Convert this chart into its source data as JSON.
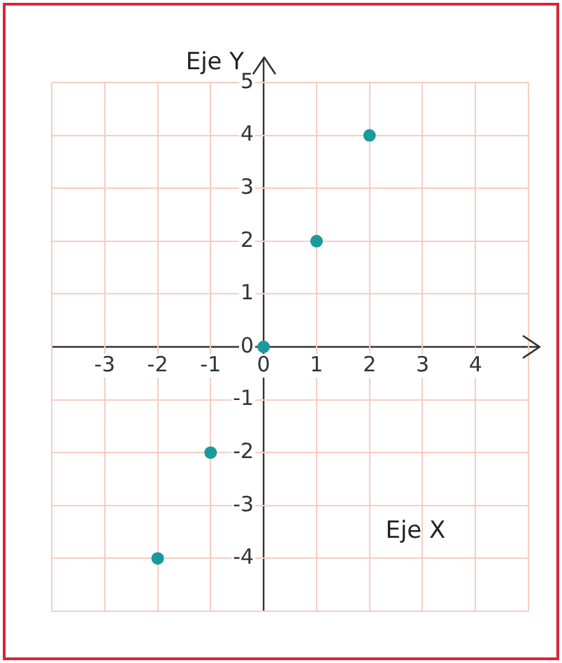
{
  "chart_data": {
    "type": "scatter",
    "xlabel": "Eje X",
    "ylabel": "Eje Y",
    "x": [
      -2,
      -1,
      0,
      1,
      2
    ],
    "series": [
      {
        "color": "#1a9a9c",
        "values": [
          -4,
          -2,
          0,
          2,
          4
        ]
      }
    ],
    "xlim": [
      -4,
      5
    ],
    "ylim": [
      -5,
      5
    ],
    "xticks": [
      {
        "value": -4,
        "label": null
      },
      -3,
      -2,
      -1,
      0,
      1,
      2,
      3,
      4,
      {
        "value": 5,
        "label": null
      }
    ],
    "yticks": [
      {
        "value": -5,
        "label": null
      },
      -4,
      -3,
      -2,
      -1,
      0,
      1,
      2,
      3,
      4,
      5
    ],
    "grid": true,
    "legend": false,
    "marker": "circle"
  }
}
